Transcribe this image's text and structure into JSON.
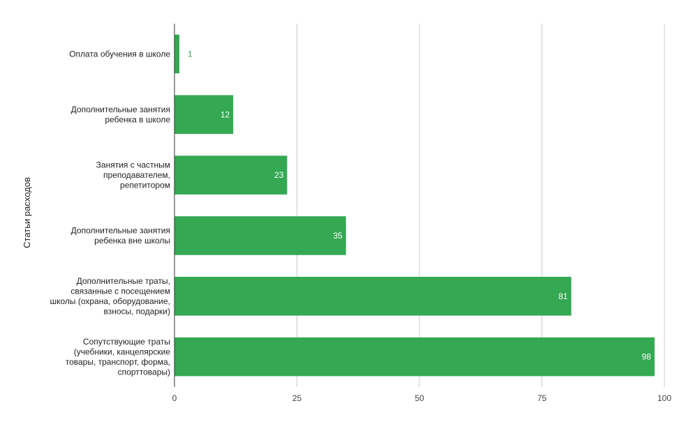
{
  "chart_data": {
    "type": "bar",
    "orientation": "horizontal",
    "ylabel": "Статьи расходов",
    "xlim": [
      0,
      100
    ],
    "xticks": [
      0,
      25,
      50,
      75,
      100
    ],
    "grid": true,
    "categories": [
      [
        "Оплата обучения в школе"
      ],
      [
        "Дополнительные занятия",
        "ребенка в школе"
      ],
      [
        "Занятия с частным",
        "преподавателем,",
        "репетитором"
      ],
      [
        "Дополнительные занятия",
        "ребенка вне школы"
      ],
      [
        "Дополнительные траты,",
        "связанные с посещением",
        "школы (охрана, оборудование,",
        "взносы, подарки)"
      ],
      [
        "Сопутствующие траты",
        "(учебники, канцелярские",
        "товары, транспорт, форма,",
        "спорттовары)"
      ]
    ],
    "values": [
      1,
      12,
      23,
      35,
      81,
      98
    ],
    "colors": {
      "bar": "#34a853",
      "label_inside": "#ffffff",
      "label_outside": "#34a853",
      "grid": "#cccccc",
      "axis": "#333333"
    }
  }
}
